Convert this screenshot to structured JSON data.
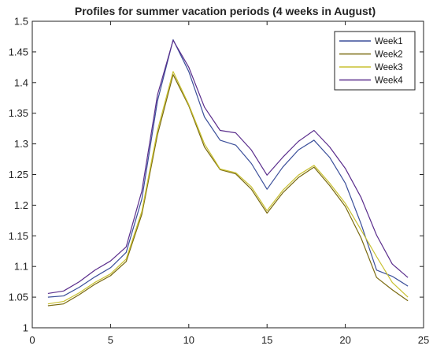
{
  "chart_data": {
    "type": "line",
    "title": "Profiles for summer vacation periods (4 weeks in August)",
    "xlabel": "",
    "ylabel": "",
    "xlim": [
      0,
      25
    ],
    "ylim": [
      1.0,
      1.5
    ],
    "xticks": [
      "0",
      "5",
      "10",
      "15",
      "20",
      "25"
    ],
    "yticks": [
      "1",
      "1.05",
      "1.1",
      "1.15",
      "1.2",
      "1.25",
      "1.3",
      "1.35",
      "1.4",
      "1.45",
      "1.5"
    ],
    "grid": false,
    "legend_position": "top-right",
    "x": [
      1,
      2,
      3,
      4,
      5,
      6,
      7,
      8,
      9,
      10,
      11,
      12,
      13,
      14,
      15,
      16,
      17,
      18,
      19,
      20,
      21,
      22,
      23,
      24
    ],
    "series": [
      {
        "name": "Week1",
        "color": "#3b4f9a",
        "values": [
          1.05,
          1.052,
          1.066,
          1.083,
          1.098,
          1.123,
          1.21,
          1.37,
          1.47,
          1.418,
          1.344,
          1.306,
          1.298,
          1.268,
          1.226,
          1.262,
          1.29,
          1.306,
          1.278,
          1.236,
          1.17,
          1.094,
          1.084,
          1.068
        ]
      },
      {
        "name": "Week2",
        "color": "#7a6a10",
        "values": [
          1.036,
          1.039,
          1.054,
          1.071,
          1.085,
          1.108,
          1.185,
          1.315,
          1.413,
          1.362,
          1.295,
          1.258,
          1.251,
          1.226,
          1.187,
          1.22,
          1.245,
          1.262,
          1.232,
          1.198,
          1.147,
          1.082,
          1.062,
          1.044
        ]
      },
      {
        "name": "Week3",
        "color": "#c8c030",
        "values": [
          1.039,
          1.043,
          1.057,
          1.074,
          1.088,
          1.112,
          1.19,
          1.322,
          1.418,
          1.364,
          1.3,
          1.259,
          1.253,
          1.23,
          1.191,
          1.224,
          1.249,
          1.265,
          1.236,
          1.203,
          1.16,
          1.116,
          1.074,
          1.05
        ]
      },
      {
        "name": "Week4",
        "color": "#5a2d8c",
        "values": [
          1.056,
          1.06,
          1.075,
          1.094,
          1.109,
          1.132,
          1.223,
          1.38,
          1.469,
          1.425,
          1.36,
          1.322,
          1.318,
          1.29,
          1.249,
          1.278,
          1.304,
          1.322,
          1.295,
          1.26,
          1.213,
          1.151,
          1.104,
          1.082
        ]
      }
    ]
  }
}
